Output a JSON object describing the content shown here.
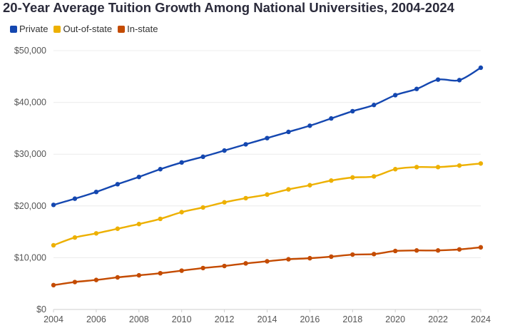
{
  "chart_data": {
    "type": "line",
    "title": "20-Year Average Tuition Growth Among National Universities, 2004-2024",
    "xlabel": "",
    "ylabel": "",
    "ylim": [
      0,
      50000
    ],
    "y_ticks": [
      "$0",
      "$10,000",
      "$20,000",
      "$30,000",
      "$40,000",
      "$50,000"
    ],
    "y_tick_values": [
      0,
      10000,
      20000,
      30000,
      40000,
      50000
    ],
    "x_ticks": [
      "2004",
      "2006",
      "2008",
      "2010",
      "2012",
      "2014",
      "2016",
      "2018",
      "2020",
      "2022",
      "2024"
    ],
    "x": [
      2004,
      2005,
      2006,
      2007,
      2008,
      2009,
      2010,
      2011,
      2012,
      2013,
      2014,
      2015,
      2016,
      2017,
      2018,
      2019,
      2020,
      2021,
      2022,
      2023,
      2024
    ],
    "series": [
      {
        "name": "Private",
        "color": "#1447b0",
        "values": [
          20200,
          21400,
          22700,
          24200,
          25600,
          27100,
          28400,
          29500,
          30700,
          31900,
          33100,
          34300,
          35500,
          36900,
          38300,
          39500,
          41400,
          42600,
          44400,
          44300,
          46700
        ]
      },
      {
        "name": "Out-of-state",
        "color": "#edb000",
        "values": [
          12400,
          13900,
          14700,
          15600,
          16500,
          17500,
          18800,
          19700,
          20700,
          21500,
          22200,
          23200,
          24000,
          24900,
          25500,
          25700,
          27100,
          27500,
          27500,
          27800,
          28200
        ]
      },
      {
        "name": "In-state",
        "color": "#c44b00",
        "values": [
          4700,
          5300,
          5700,
          6200,
          6600,
          7000,
          7500,
          8000,
          8400,
          8900,
          9300,
          9700,
          9900,
          10200,
          10600,
          10700,
          11300,
          11400,
          11400,
          11600,
          12000
        ]
      }
    ]
  }
}
